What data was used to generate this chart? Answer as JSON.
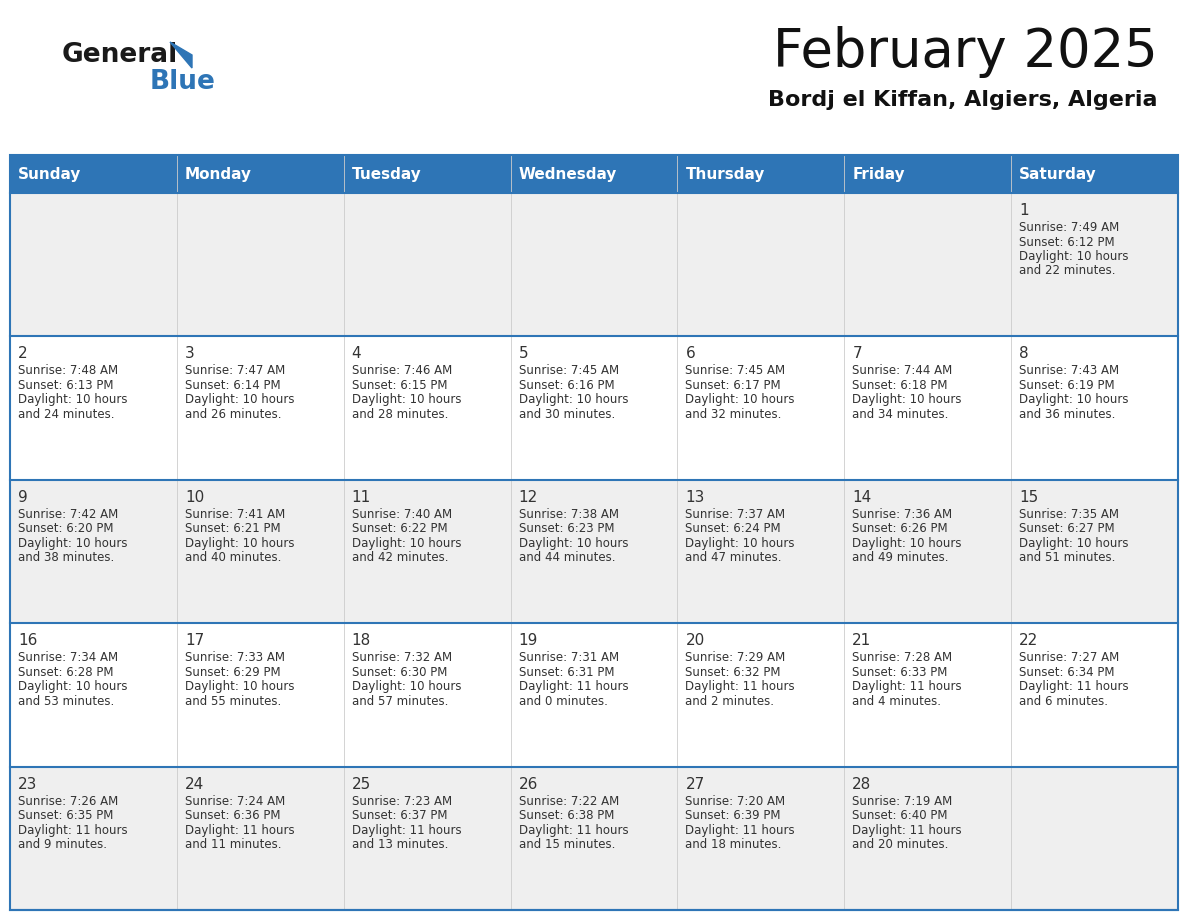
{
  "title": "February 2025",
  "subtitle": "Bordj el Kiffan, Algiers, Algeria",
  "header_bg": "#2E75B6",
  "header_text_color": "#FFFFFF",
  "cell_bg_white": "#FFFFFF",
  "cell_bg_light": "#EFEFEF",
  "border_color": "#2E75B6",
  "divider_color": "#2E75B6",
  "text_color": "#333333",
  "days_of_week": [
    "Sunday",
    "Monday",
    "Tuesday",
    "Wednesday",
    "Thursday",
    "Friday",
    "Saturday"
  ],
  "calendar_data": [
    [
      null,
      null,
      null,
      null,
      null,
      null,
      {
        "day": 1,
        "sunrise": "7:49 AM",
        "sunset": "6:12 PM",
        "daylight_hours": 10,
        "daylight_minutes": 22
      }
    ],
    [
      {
        "day": 2,
        "sunrise": "7:48 AM",
        "sunset": "6:13 PM",
        "daylight_hours": 10,
        "daylight_minutes": 24
      },
      {
        "day": 3,
        "sunrise": "7:47 AM",
        "sunset": "6:14 PM",
        "daylight_hours": 10,
        "daylight_minutes": 26
      },
      {
        "day": 4,
        "sunrise": "7:46 AM",
        "sunset": "6:15 PM",
        "daylight_hours": 10,
        "daylight_minutes": 28
      },
      {
        "day": 5,
        "sunrise": "7:45 AM",
        "sunset": "6:16 PM",
        "daylight_hours": 10,
        "daylight_minutes": 30
      },
      {
        "day": 6,
        "sunrise": "7:45 AM",
        "sunset": "6:17 PM",
        "daylight_hours": 10,
        "daylight_minutes": 32
      },
      {
        "day": 7,
        "sunrise": "7:44 AM",
        "sunset": "6:18 PM",
        "daylight_hours": 10,
        "daylight_minutes": 34
      },
      {
        "day": 8,
        "sunrise": "7:43 AM",
        "sunset": "6:19 PM",
        "daylight_hours": 10,
        "daylight_minutes": 36
      }
    ],
    [
      {
        "day": 9,
        "sunrise": "7:42 AM",
        "sunset": "6:20 PM",
        "daylight_hours": 10,
        "daylight_minutes": 38
      },
      {
        "day": 10,
        "sunrise": "7:41 AM",
        "sunset": "6:21 PM",
        "daylight_hours": 10,
        "daylight_minutes": 40
      },
      {
        "day": 11,
        "sunrise": "7:40 AM",
        "sunset": "6:22 PM",
        "daylight_hours": 10,
        "daylight_minutes": 42
      },
      {
        "day": 12,
        "sunrise": "7:38 AM",
        "sunset": "6:23 PM",
        "daylight_hours": 10,
        "daylight_minutes": 44
      },
      {
        "day": 13,
        "sunrise": "7:37 AM",
        "sunset": "6:24 PM",
        "daylight_hours": 10,
        "daylight_minutes": 47
      },
      {
        "day": 14,
        "sunrise": "7:36 AM",
        "sunset": "6:26 PM",
        "daylight_hours": 10,
        "daylight_minutes": 49
      },
      {
        "day": 15,
        "sunrise": "7:35 AM",
        "sunset": "6:27 PM",
        "daylight_hours": 10,
        "daylight_minutes": 51
      }
    ],
    [
      {
        "day": 16,
        "sunrise": "7:34 AM",
        "sunset": "6:28 PM",
        "daylight_hours": 10,
        "daylight_minutes": 53
      },
      {
        "day": 17,
        "sunrise": "7:33 AM",
        "sunset": "6:29 PM",
        "daylight_hours": 10,
        "daylight_minutes": 55
      },
      {
        "day": 18,
        "sunrise": "7:32 AM",
        "sunset": "6:30 PM",
        "daylight_hours": 10,
        "daylight_minutes": 57
      },
      {
        "day": 19,
        "sunrise": "7:31 AM",
        "sunset": "6:31 PM",
        "daylight_hours": 11,
        "daylight_minutes": 0
      },
      {
        "day": 20,
        "sunrise": "7:29 AM",
        "sunset": "6:32 PM",
        "daylight_hours": 11,
        "daylight_minutes": 2
      },
      {
        "day": 21,
        "sunrise": "7:28 AM",
        "sunset": "6:33 PM",
        "daylight_hours": 11,
        "daylight_minutes": 4
      },
      {
        "day": 22,
        "sunrise": "7:27 AM",
        "sunset": "6:34 PM",
        "daylight_hours": 11,
        "daylight_minutes": 6
      }
    ],
    [
      {
        "day": 23,
        "sunrise": "7:26 AM",
        "sunset": "6:35 PM",
        "daylight_hours": 11,
        "daylight_minutes": 9
      },
      {
        "day": 24,
        "sunrise": "7:24 AM",
        "sunset": "6:36 PM",
        "daylight_hours": 11,
        "daylight_minutes": 11
      },
      {
        "day": 25,
        "sunrise": "7:23 AM",
        "sunset": "6:37 PM",
        "daylight_hours": 11,
        "daylight_minutes": 13
      },
      {
        "day": 26,
        "sunrise": "7:22 AM",
        "sunset": "6:38 PM",
        "daylight_hours": 11,
        "daylight_minutes": 15
      },
      {
        "day": 27,
        "sunrise": "7:20 AM",
        "sunset": "6:39 PM",
        "daylight_hours": 11,
        "daylight_minutes": 18
      },
      {
        "day": 28,
        "sunrise": "7:19 AM",
        "sunset": "6:40 PM",
        "daylight_hours": 11,
        "daylight_minutes": 20
      },
      null
    ]
  ],
  "logo_general_color": "#1a1a1a",
  "logo_blue_color": "#2E75B6",
  "logo_triangle_color": "#2E75B6",
  "title_fontsize": 38,
  "subtitle_fontsize": 16,
  "header_fontsize": 11,
  "day_num_fontsize": 11,
  "cell_text_fontsize": 8.5
}
